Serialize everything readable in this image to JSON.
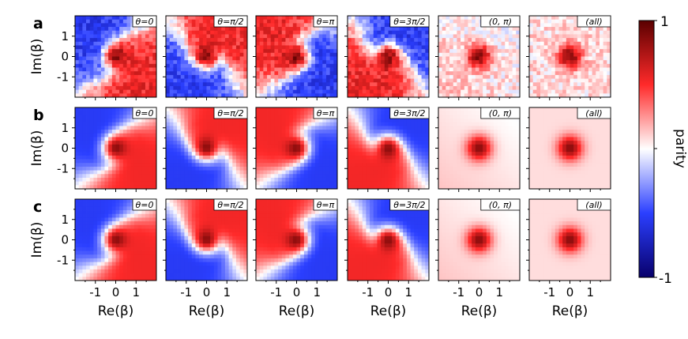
{
  "chart_data": {
    "type": "heatmap",
    "rows": [
      {
        "label": "a",
        "noisy": true
      },
      {
        "label": "b",
        "noisy": false
      },
      {
        "label": "c",
        "noisy": false
      }
    ],
    "panels": [
      {
        "tag": "θ=0",
        "theta": 0
      },
      {
        "tag": "θ=π/2",
        "theta": 1.5708
      },
      {
        "tag": "θ=π",
        "theta": 3.1416
      },
      {
        "tag": "θ=3π/2",
        "theta": 4.7124
      },
      {
        "tag": "(0, π)",
        "theta": null
      },
      {
        "tag": "(all)",
        "theta": null
      }
    ],
    "xlabel": "Re(β)",
    "ylabel": "Im(β)",
    "xticks": [
      "-1",
      "0",
      "1"
    ],
    "yticks": [
      "1",
      "0",
      "-1"
    ],
    "xlim": [
      -2,
      2
    ],
    "ylim": [
      -2,
      2
    ],
    "colorbar": {
      "label": "parity",
      "range": [
        -1,
        1
      ],
      "tick_labels": [
        "1",
        "-1"
      ],
      "colors": [
        "#08006b",
        "#2b3fff",
        "#ffffff",
        "#ff2a2a",
        "#5a0000"
      ]
    }
  }
}
